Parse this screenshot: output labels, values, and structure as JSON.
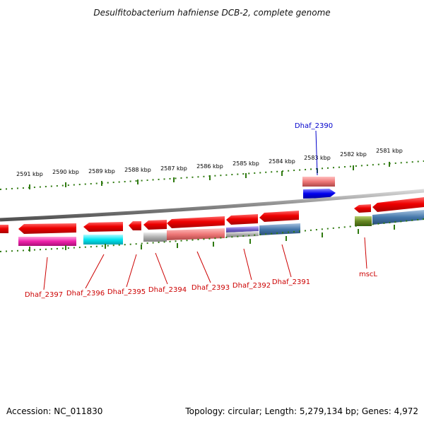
{
  "title": "Desulfitobacterium hafniense DCB-2, complete genome",
  "footer": {
    "accession": "Accession: NC_011830",
    "stats": "Topology: circular; Length: 5,279,134 bp; Genes: 4,972"
  },
  "colors": {
    "forward_cds": "#e00000",
    "reverse_cds": "#e00000",
    "backbone": "#8a8a8a",
    "ticks": "#2f7a10",
    "label_red": "#cc0000",
    "label_blue": "#0000cc",
    "magenta": "#ee22aa",
    "cyan": "#00e5f0",
    "salmon": "#ee7777",
    "gray": "#b0b0b0",
    "steelblue": "#4477aa",
    "purple": "#7766cc",
    "olive": "#668822",
    "blue": "#0000ee"
  },
  "tick_labels": [
    "2591 kbp",
    "2590 kbp",
    "2589 kbp",
    "2588 kbp",
    "2587 kbp",
    "2586 kbp",
    "2585 kbp",
    "2584 kbp",
    "2583 kbp",
    "2582 kbp",
    "2581 kbp"
  ],
  "genes": [
    {
      "label": "Dhaf_2397",
      "color": "#cc0000"
    },
    {
      "label": "Dhaf_2396",
      "color": "#cc0000"
    },
    {
      "label": "Dhaf_2395",
      "color": "#cc0000"
    },
    {
      "label": "Dhaf_2394",
      "color": "#cc0000"
    },
    {
      "label": "Dhaf_2393",
      "color": "#cc0000"
    },
    {
      "label": "Dhaf_2392",
      "color": "#cc0000"
    },
    {
      "label": "Dhaf_2391",
      "color": "#cc0000"
    },
    {
      "label": "Dhaf_2390",
      "color": "#0000cc"
    },
    {
      "label": "mscL",
      "color": "#cc0000"
    }
  ]
}
